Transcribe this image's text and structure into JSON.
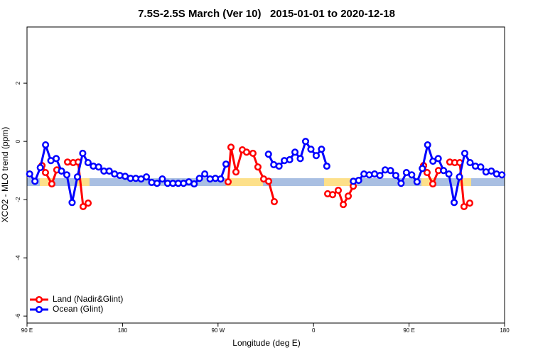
{
  "chart_data": {
    "type": "line",
    "title": "7.5S-2.5S March (Ver 10)   2015-01-01 to 2020-12-18",
    "x_label": "Longitude (deg E)",
    "y_label": "XCO2 - MLO trend (ppm)",
    "xlim": [
      90,
      540
    ],
    "ylim": [
      -6.24,
      3.93
    ],
    "xticks": [
      {
        "value": 90,
        "label": "90 E"
      },
      {
        "value": 180,
        "label": "180"
      },
      {
        "value": 270,
        "label": "90 W"
      },
      {
        "value": 360,
        "label": "0"
      },
      {
        "value": 450,
        "label": "90 E"
      },
      {
        "value": 540,
        "label": "180"
      }
    ],
    "yticks": [
      -6,
      -4,
      -2,
      0,
      2
    ],
    "legend": "bottom-left",
    "series": [
      {
        "name": "Land (Nadir&Glint)",
        "color": "#ff0000",
        "x": [
          104.1,
          107.4,
          113.4,
          118.1,
          null,
          128.2,
          133.5,
          138.2,
          142.9,
          147.6,
          null,
          279.5,
          282.2,
          286.9,
          292.9,
          296.9,
          302.9,
          307.6,
          313.0,
          317.7,
          323.0,
          null,
          373.3,
          378.0,
          383.3,
          388.0,
          392.7,
          397.4,
          null,
          463.7,
          467.0,
          472.4,
          477.7,
          null,
          488.4,
          493.1,
          497.8,
          501.8,
          507.2
        ],
        "values": [
          -0.83,
          -1.07,
          -1.46,
          -0.98,
          null,
          -0.71,
          -0.73,
          -0.71,
          -2.24,
          -2.12,
          null,
          -1.39,
          -0.2,
          -1.05,
          -0.29,
          -0.37,
          -0.41,
          -0.88,
          -1.29,
          -1.37,
          -2.07,
          null,
          -1.8,
          -1.83,
          -1.68,
          -2.17,
          -1.88,
          -1.54,
          null,
          -0.83,
          -1.07,
          -1.46,
          -1.0,
          null,
          -0.71,
          -0.73,
          -0.73,
          -2.24,
          -2.12
        ]
      },
      {
        "name": "Ocean (Glint)",
        "color": "#0000ff",
        "x": [
          92.5,
          97.5,
          102.5,
          107.5,
          112.5,
          117.5,
          122.5,
          127.5,
          132.5,
          137.5,
          142.5,
          147.5,
          152.5,
          157.5,
          162.5,
          167.5,
          172.5,
          177.5,
          182.5,
          187.5,
          192.5,
          197.5,
          202.5,
          207.5,
          212.5,
          217.5,
          222.5,
          227.5,
          232.5,
          237.5,
          242.5,
          247.5,
          252.5,
          257.5,
          262.5,
          267.5,
          272.5,
          277.5,
          null,
          317.5,
          322.5,
          327.5,
          332.5,
          337.5,
          342.5,
          347.5,
          352.5,
          357.5,
          362.5,
          367.5,
          372.5,
          null,
          397.5,
          402.5,
          407.5,
          412.5,
          417.5,
          422.5,
          427.5,
          432.5,
          437.5,
          442.5,
          447.5,
          452.5,
          457.5,
          462.5,
          467.5,
          472.5,
          477.5,
          482.5,
          487.5,
          492.5,
          497.5,
          502.5,
          507.5,
          512.5,
          517.5,
          522.5,
          527.5,
          532.5,
          537.5
        ],
        "values": [
          -1.12,
          -1.37,
          -0.9,
          -0.12,
          -0.66,
          -0.59,
          -1.02,
          -1.15,
          -2.1,
          -1.22,
          -0.41,
          -0.73,
          -0.85,
          -0.88,
          -1.02,
          -1.02,
          -1.12,
          -1.17,
          -1.2,
          -1.27,
          -1.27,
          -1.29,
          -1.22,
          -1.41,
          -1.44,
          -1.29,
          -1.44,
          -1.44,
          -1.44,
          -1.44,
          -1.39,
          -1.46,
          -1.27,
          -1.12,
          -1.29,
          -1.27,
          -1.29,
          -0.78,
          null,
          -0.44,
          -0.8,
          -0.85,
          -0.66,
          -0.63,
          -0.37,
          -0.59,
          0.0,
          -0.27,
          -0.49,
          -0.27,
          -0.85,
          null,
          -1.37,
          -1.34,
          -1.12,
          -1.15,
          -1.12,
          -1.17,
          -0.98,
          -1.0,
          -1.17,
          -1.44,
          -1.07,
          -1.15,
          -1.39,
          -0.93,
          -0.12,
          -0.68,
          -0.59,
          -1.0,
          -1.12,
          -2.1,
          -1.22,
          -0.41,
          -0.73,
          -0.85,
          -0.88,
          -1.05,
          -1.02,
          -1.12,
          -1.15
        ]
      }
    ]
  }
}
